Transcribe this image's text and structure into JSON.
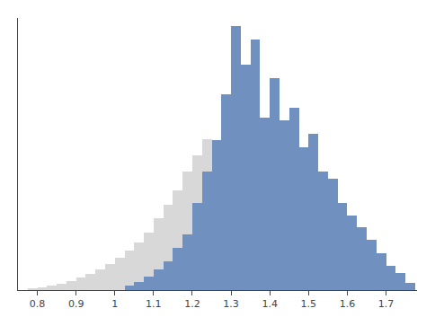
{
  "chart_data": {
    "type": "histogram",
    "series": [
      {
        "color": "#d8d8d8",
        "bins": [
          0.775,
          0.8,
          0.825,
          0.85,
          0.875,
          0.9,
          0.925,
          0.95,
          0.975,
          1.0,
          1.025,
          1.05,
          1.075,
          1.1,
          1.125,
          1.15,
          1.175,
          1.2,
          1.225,
          1.25
        ],
        "values": [
          0.006,
          0.01,
          0.016,
          0.022,
          0.032,
          0.045,
          0.058,
          0.075,
          0.095,
          0.12,
          0.145,
          0.175,
          0.21,
          0.265,
          0.315,
          0.365,
          0.435,
          0.495,
          0.555
        ]
      },
      {
        "color": "#7090c0",
        "bins": [
          1.025,
          1.05,
          1.075,
          1.1,
          1.125,
          1.15,
          1.175,
          1.2,
          1.225,
          1.25,
          1.275,
          1.3,
          1.325,
          1.35,
          1.375,
          1.4,
          1.425,
          1.45,
          1.475,
          1.5,
          1.525,
          1.55,
          1.575,
          1.6,
          1.625,
          1.65,
          1.675,
          1.7,
          1.725,
          1.75,
          1.775
        ],
        "values": [
          0.015,
          0.03,
          0.05,
          0.075,
          0.105,
          0.155,
          0.205,
          0.32,
          0.435,
          0.55,
          0.72,
          0.97,
          0.83,
          0.92,
          0.635,
          0.78,
          0.625,
          0.67,
          0.525,
          0.575,
          0.435,
          0.41,
          0.32,
          0.275,
          0.23,
          0.185,
          0.135,
          0.09,
          0.062,
          0.028
        ]
      }
    ],
    "xlim": [
      0.75,
      1.78
    ],
    "xticks": [
      0.8,
      0.9,
      1,
      1.1,
      1.2,
      1.3,
      1.4,
      1.5,
      1.6,
      1.7
    ],
    "ylim": [
      0,
      1.0
    ],
    "tick_labels": "x",
    "grid": false
  }
}
